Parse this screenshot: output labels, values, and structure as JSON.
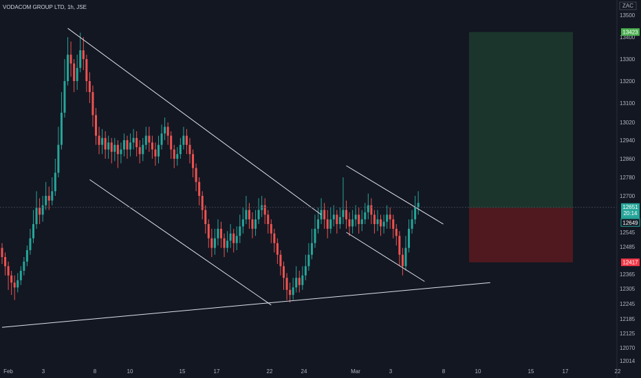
{
  "header": {
    "title": "VODACOM GROUP LTD, 1h, JSE"
  },
  "currency": "ZAC",
  "colors": {
    "background": "#131722",
    "up": "#26a69a",
    "down": "#ef5350",
    "line": "#e0e3eb",
    "target_zone": "#1e3b2e",
    "stop_zone": "#5b1a1e",
    "target_badge": "#4caf50",
    "last_price_badge": "#26a69a",
    "stop_badge": "#f23645"
  },
  "badges": {
    "target": "13423",
    "last_price": "12651",
    "countdown": "20:14",
    "entry": "12649",
    "stop": "12417"
  },
  "chart_data": {
    "type": "candlestick",
    "symbol": "VODACOM GROUP LTD",
    "interval": "1h",
    "exchange": "JSE",
    "y_ticks": [
      13500,
      13400,
      13300,
      13200,
      13100,
      13020,
      12940,
      12860,
      12780,
      12700,
      12545,
      12485,
      12365,
      12305,
      12245,
      12185,
      12125,
      12070,
      12014
    ],
    "x_labels": [
      "Feb",
      "3",
      "8",
      "10",
      "15",
      "17",
      "22",
      "24",
      "Mar",
      "3",
      "8",
      "10",
      "15",
      "17",
      "22"
    ],
    "last_price": 12651,
    "entry": 12649,
    "target": 13423,
    "stop": 12417,
    "candles": [
      [
        12480,
        12440,
        12500,
        12410
      ],
      [
        12440,
        12400,
        12460,
        12360
      ],
      [
        12400,
        12360,
        12420,
        12300
      ],
      [
        12360,
        12330,
        12380,
        12280
      ],
      [
        12330,
        12310,
        12360,
        12260
      ],
      [
        12310,
        12340,
        12370,
        12290
      ],
      [
        12340,
        12380,
        12400,
        12320
      ],
      [
        12380,
        12420,
        12440,
        12360
      ],
      [
        12420,
        12470,
        12490,
        12400
      ],
      [
        12470,
        12520,
        12560,
        12450
      ],
      [
        12520,
        12580,
        12640,
        12500
      ],
      [
        12580,
        12650,
        12720,
        12560
      ],
      [
        12650,
        12620,
        12690,
        12580
      ],
      [
        12620,
        12660,
        12700,
        12590
      ],
      [
        12660,
        12700,
        12760,
        12640
      ],
      [
        12700,
        12680,
        12740,
        12640
      ],
      [
        12680,
        12720,
        12780,
        12660
      ],
      [
        12720,
        12800,
        12860,
        12700
      ],
      [
        12800,
        12920,
        13000,
        12780
      ],
      [
        12920,
        13060,
        13150,
        12900
      ],
      [
        13060,
        13200,
        13300,
        13040
      ],
      [
        13200,
        13320,
        13400,
        13180
      ],
      [
        13320,
        13280,
        13380,
        13220
      ],
      [
        13280,
        13200,
        13300,
        13150
      ],
      [
        13200,
        13260,
        13320,
        13160
      ],
      [
        13260,
        13340,
        13420,
        13240
      ],
      [
        13340,
        13300,
        13400,
        13250
      ],
      [
        13300,
        13200,
        13320,
        13150
      ],
      [
        13200,
        13150,
        13240,
        13100
      ],
      [
        13150,
        13050,
        13180,
        13000
      ],
      [
        13050,
        12960,
        13080,
        12920
      ],
      [
        12960,
        12920,
        13000,
        12880
      ],
      [
        12920,
        12950,
        12990,
        12880
      ],
      [
        12950,
        12900,
        12980,
        12860
      ],
      [
        12900,
        12930,
        12960,
        12860
      ],
      [
        12930,
        12890,
        12950,
        12840
      ],
      [
        12890,
        12920,
        12950,
        12850
      ],
      [
        12920,
        12880,
        12940,
        12820
      ],
      [
        12880,
        12900,
        12930,
        12840
      ],
      [
        12900,
        12940,
        12970,
        12870
      ],
      [
        12940,
        12900,
        12960,
        12860
      ],
      [
        12900,
        12930,
        12970,
        12870
      ],
      [
        12930,
        12950,
        12990,
        12900
      ],
      [
        12950,
        12910,
        12980,
        12870
      ],
      [
        12910,
        12880,
        12940,
        12840
      ],
      [
        12880,
        12920,
        12950,
        12850
      ],
      [
        12920,
        12960,
        13000,
        12900
      ],
      [
        12960,
        12930,
        13000,
        12890
      ],
      [
        12930,
        12900,
        12960,
        12860
      ],
      [
        12900,
        12870,
        12930,
        12830
      ],
      [
        12870,
        12920,
        12960,
        12840
      ],
      [
        12920,
        12970,
        13010,
        12900
      ],
      [
        12970,
        13000,
        13040,
        12940
      ],
      [
        13000,
        12960,
        13020,
        12920
      ],
      [
        12960,
        12900,
        12980,
        12860
      ],
      [
        12900,
        12860,
        12920,
        12820
      ],
      [
        12860,
        12880,
        12910,
        12830
      ],
      [
        12880,
        12920,
        12950,
        12860
      ],
      [
        12920,
        12960,
        13000,
        12900
      ],
      [
        12960,
        12920,
        12990,
        12880
      ],
      [
        12920,
        12880,
        12950,
        12840
      ],
      [
        12880,
        12820,
        12900,
        12780
      ],
      [
        12820,
        12760,
        12840,
        12720
      ],
      [
        12760,
        12700,
        12780,
        12660
      ],
      [
        12700,
        12640,
        12720,
        12600
      ],
      [
        12640,
        12580,
        12660,
        12540
      ],
      [
        12580,
        12520,
        12600,
        12480
      ],
      [
        12520,
        12480,
        12560,
        12440
      ],
      [
        12480,
        12520,
        12560,
        12450
      ],
      [
        12520,
        12560,
        12600,
        12490
      ],
      [
        12560,
        12520,
        12590,
        12480
      ],
      [
        12520,
        12480,
        12540,
        12440
      ],
      [
        12480,
        12510,
        12550,
        12460
      ],
      [
        12510,
        12540,
        12580,
        12480
      ],
      [
        12540,
        12500,
        12560,
        12460
      ],
      [
        12500,
        12530,
        12570,
        12470
      ],
      [
        12530,
        12570,
        12620,
        12500
      ],
      [
        12570,
        12600,
        12650,
        12540
      ],
      [
        12600,
        12640,
        12700,
        12580
      ],
      [
        12640,
        12600,
        12670,
        12560
      ],
      [
        12600,
        12560,
        12630,
        12520
      ],
      [
        12560,
        12600,
        12640,
        12530
      ],
      [
        12600,
        12640,
        12690,
        12580
      ],
      [
        12640,
        12660,
        12700,
        12610
      ],
      [
        12660,
        12620,
        12690,
        12580
      ],
      [
        12620,
        12580,
        12640,
        12540
      ],
      [
        12580,
        12540,
        12600,
        12500
      ],
      [
        12540,
        12500,
        12560,
        12460
      ],
      [
        12500,
        12450,
        12520,
        12410
      ],
      [
        12450,
        12400,
        12470,
        12360
      ],
      [
        12400,
        12350,
        12420,
        12300
      ],
      [
        12350,
        12300,
        12370,
        12260
      ],
      [
        12300,
        12280,
        12330,
        12250
      ],
      [
        12280,
        12310,
        12350,
        12260
      ],
      [
        12310,
        12350,
        12400,
        12290
      ],
      [
        12350,
        12320,
        12380,
        12290
      ],
      [
        12320,
        12360,
        12400,
        12300
      ],
      [
        12360,
        12400,
        12450,
        12340
      ],
      [
        12400,
        12450,
        12500,
        12380
      ],
      [
        12450,
        12500,
        12560,
        12430
      ],
      [
        12500,
        12560,
        12620,
        12480
      ],
      [
        12560,
        12600,
        12650,
        12540
      ],
      [
        12600,
        12640,
        12690,
        12580
      ],
      [
        12640,
        12600,
        12670,
        12560
      ],
      [
        12600,
        12560,
        12640,
        12520
      ],
      [
        12560,
        12600,
        12650,
        12540
      ],
      [
        12600,
        12620,
        12660,
        12570
      ],
      [
        12620,
        12580,
        12640,
        12540
      ],
      [
        12580,
        12610,
        12650,
        12560
      ],
      [
        12610,
        12640,
        12780,
        12580
      ],
      [
        12640,
        12600,
        12680,
        12560
      ],
      [
        12600,
        12570,
        12630,
        12530
      ],
      [
        12570,
        12600,
        12640,
        12540
      ],
      [
        12600,
        12620,
        12660,
        12570
      ],
      [
        12620,
        12580,
        12650,
        12540
      ],
      [
        12580,
        12600,
        12640,
        12550
      ],
      [
        12600,
        12630,
        12670,
        12580
      ],
      [
        12630,
        12660,
        12710,
        12600
      ],
      [
        12660,
        12620,
        12690,
        12580
      ],
      [
        12620,
        12580,
        12640,
        12540
      ],
      [
        12580,
        12600,
        12640,
        12550
      ],
      [
        12600,
        12570,
        12620,
        12530
      ],
      [
        12570,
        12590,
        12620,
        12540
      ],
      [
        12590,
        12620,
        12660,
        12560
      ],
      [
        12620,
        12600,
        12650,
        12560
      ],
      [
        12600,
        12560,
        12620,
        12520
      ],
      [
        12560,
        12530,
        12580,
        12490
      ],
      [
        12530,
        12450,
        12550,
        12400
      ],
      [
        12450,
        12400,
        12480,
        12360
      ],
      [
        12400,
        12480,
        12530,
        12380
      ],
      [
        12480,
        12560,
        12600,
        12460
      ],
      [
        12560,
        12600,
        12640,
        12540
      ],
      [
        12600,
        12650,
        12700,
        12580
      ],
      [
        12650,
        12670,
        12720,
        12620
      ]
    ],
    "trendlines": [
      {
        "from": [
          21,
          13440
        ],
        "to": [
          102,
          12620
        ]
      },
      {
        "from": [
          28,
          12770
        ],
        "to": [
          86,
          12240
        ]
      },
      {
        "from": [
          0,
          12150
        ],
        "to": [
          156,
          12330
        ]
      },
      {
        "from": [
          110,
          12830
        ],
        "to": [
          141,
          12580
        ]
      },
      {
        "from": [
          110,
          12545
        ],
        "to": [
          135,
          12335
        ]
      }
    ],
    "risk_reward": {
      "x_start": 135,
      "x_end": 165,
      "entry": 12649,
      "target": 13423,
      "stop": 12417
    }
  }
}
